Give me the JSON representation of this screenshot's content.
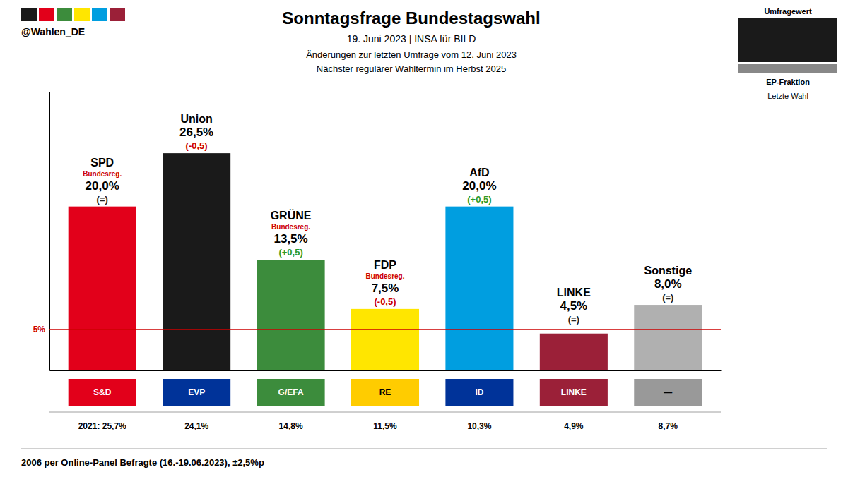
{
  "chart_data": {
    "type": "bar",
    "title": "Sonntagsfrage Bundestagswahl",
    "subtitle": [
      "19. Juni 2023 | INSA für BILD",
      "Änderungen zur letzten Umfrage vom 12. Juni 2023",
      "Nächster regulärer Wahltermin im Herbst 2025"
    ],
    "handle": "@Wahlen_DE",
    "handle_colors": [
      "#1a1a1a",
      "#e2001a",
      "#3c8c3c",
      "#ffe600",
      "#009ee0",
      "#9b2038"
    ],
    "footer": "2006 per Online-Panel Befragte (16.-19.06.2023), ±2,5%p",
    "categories": [
      "SPD",
      "Union",
      "GRÜNE",
      "FDP",
      "AfD",
      "LINKE",
      "Sonstige"
    ],
    "values": [
      20.0,
      26.5,
      13.5,
      7.5,
      20.0,
      4.5,
      8.0
    ],
    "value_labels": [
      "20,0%",
      "26,5%",
      "13,5%",
      "7,5%",
      "20,0%",
      "4,5%",
      "8,0%"
    ],
    "colors": [
      "#e2001a",
      "#1a1a1a",
      "#3c8c3c",
      "#ffe600",
      "#009ee0",
      "#9b2038",
      "#b0b0b0"
    ],
    "data_labels": true,
    "changes": [
      "(=)",
      "(-0,5)",
      "(+0,5)",
      "(-0,5)",
      "(+0,5)",
      "(=)",
      "(=)"
    ],
    "change_colors": [
      "#222222",
      "#cc0000",
      "#2a9a2a",
      "#cc0000",
      "#2a9a2a",
      "#222222",
      "#222222"
    ],
    "government": [
      true,
      false,
      true,
      true,
      false,
      false,
      false
    ],
    "government_label": "Bundesreg.",
    "ep_groups": [
      "S&D",
      "EVP",
      "G/EFA",
      "RE",
      "ID",
      "LINKE",
      "—"
    ],
    "ep_colors": [
      "#e2001a",
      "#003399",
      "#3c8c3c",
      "#ffcc00",
      "#003399",
      "#9b2038",
      "#999999"
    ],
    "ep_text_colors": [
      "white",
      "white",
      "white",
      "black",
      "white",
      "white",
      "black"
    ],
    "last_election": [
      "2021: 25,7%",
      "24,1%",
      "14,8%",
      "11,5%",
      "10,3%",
      "4,9%",
      "8,7%"
    ],
    "key_labels": [
      "Umfragewert",
      "EP-Fraktion",
      "Letzte Wahl"
    ],
    "threshold": {
      "value": 5.0,
      "label": "5%"
    },
    "ylim": [
      0,
      34
    ],
    "tick_labels": false,
    "grid": false
  }
}
